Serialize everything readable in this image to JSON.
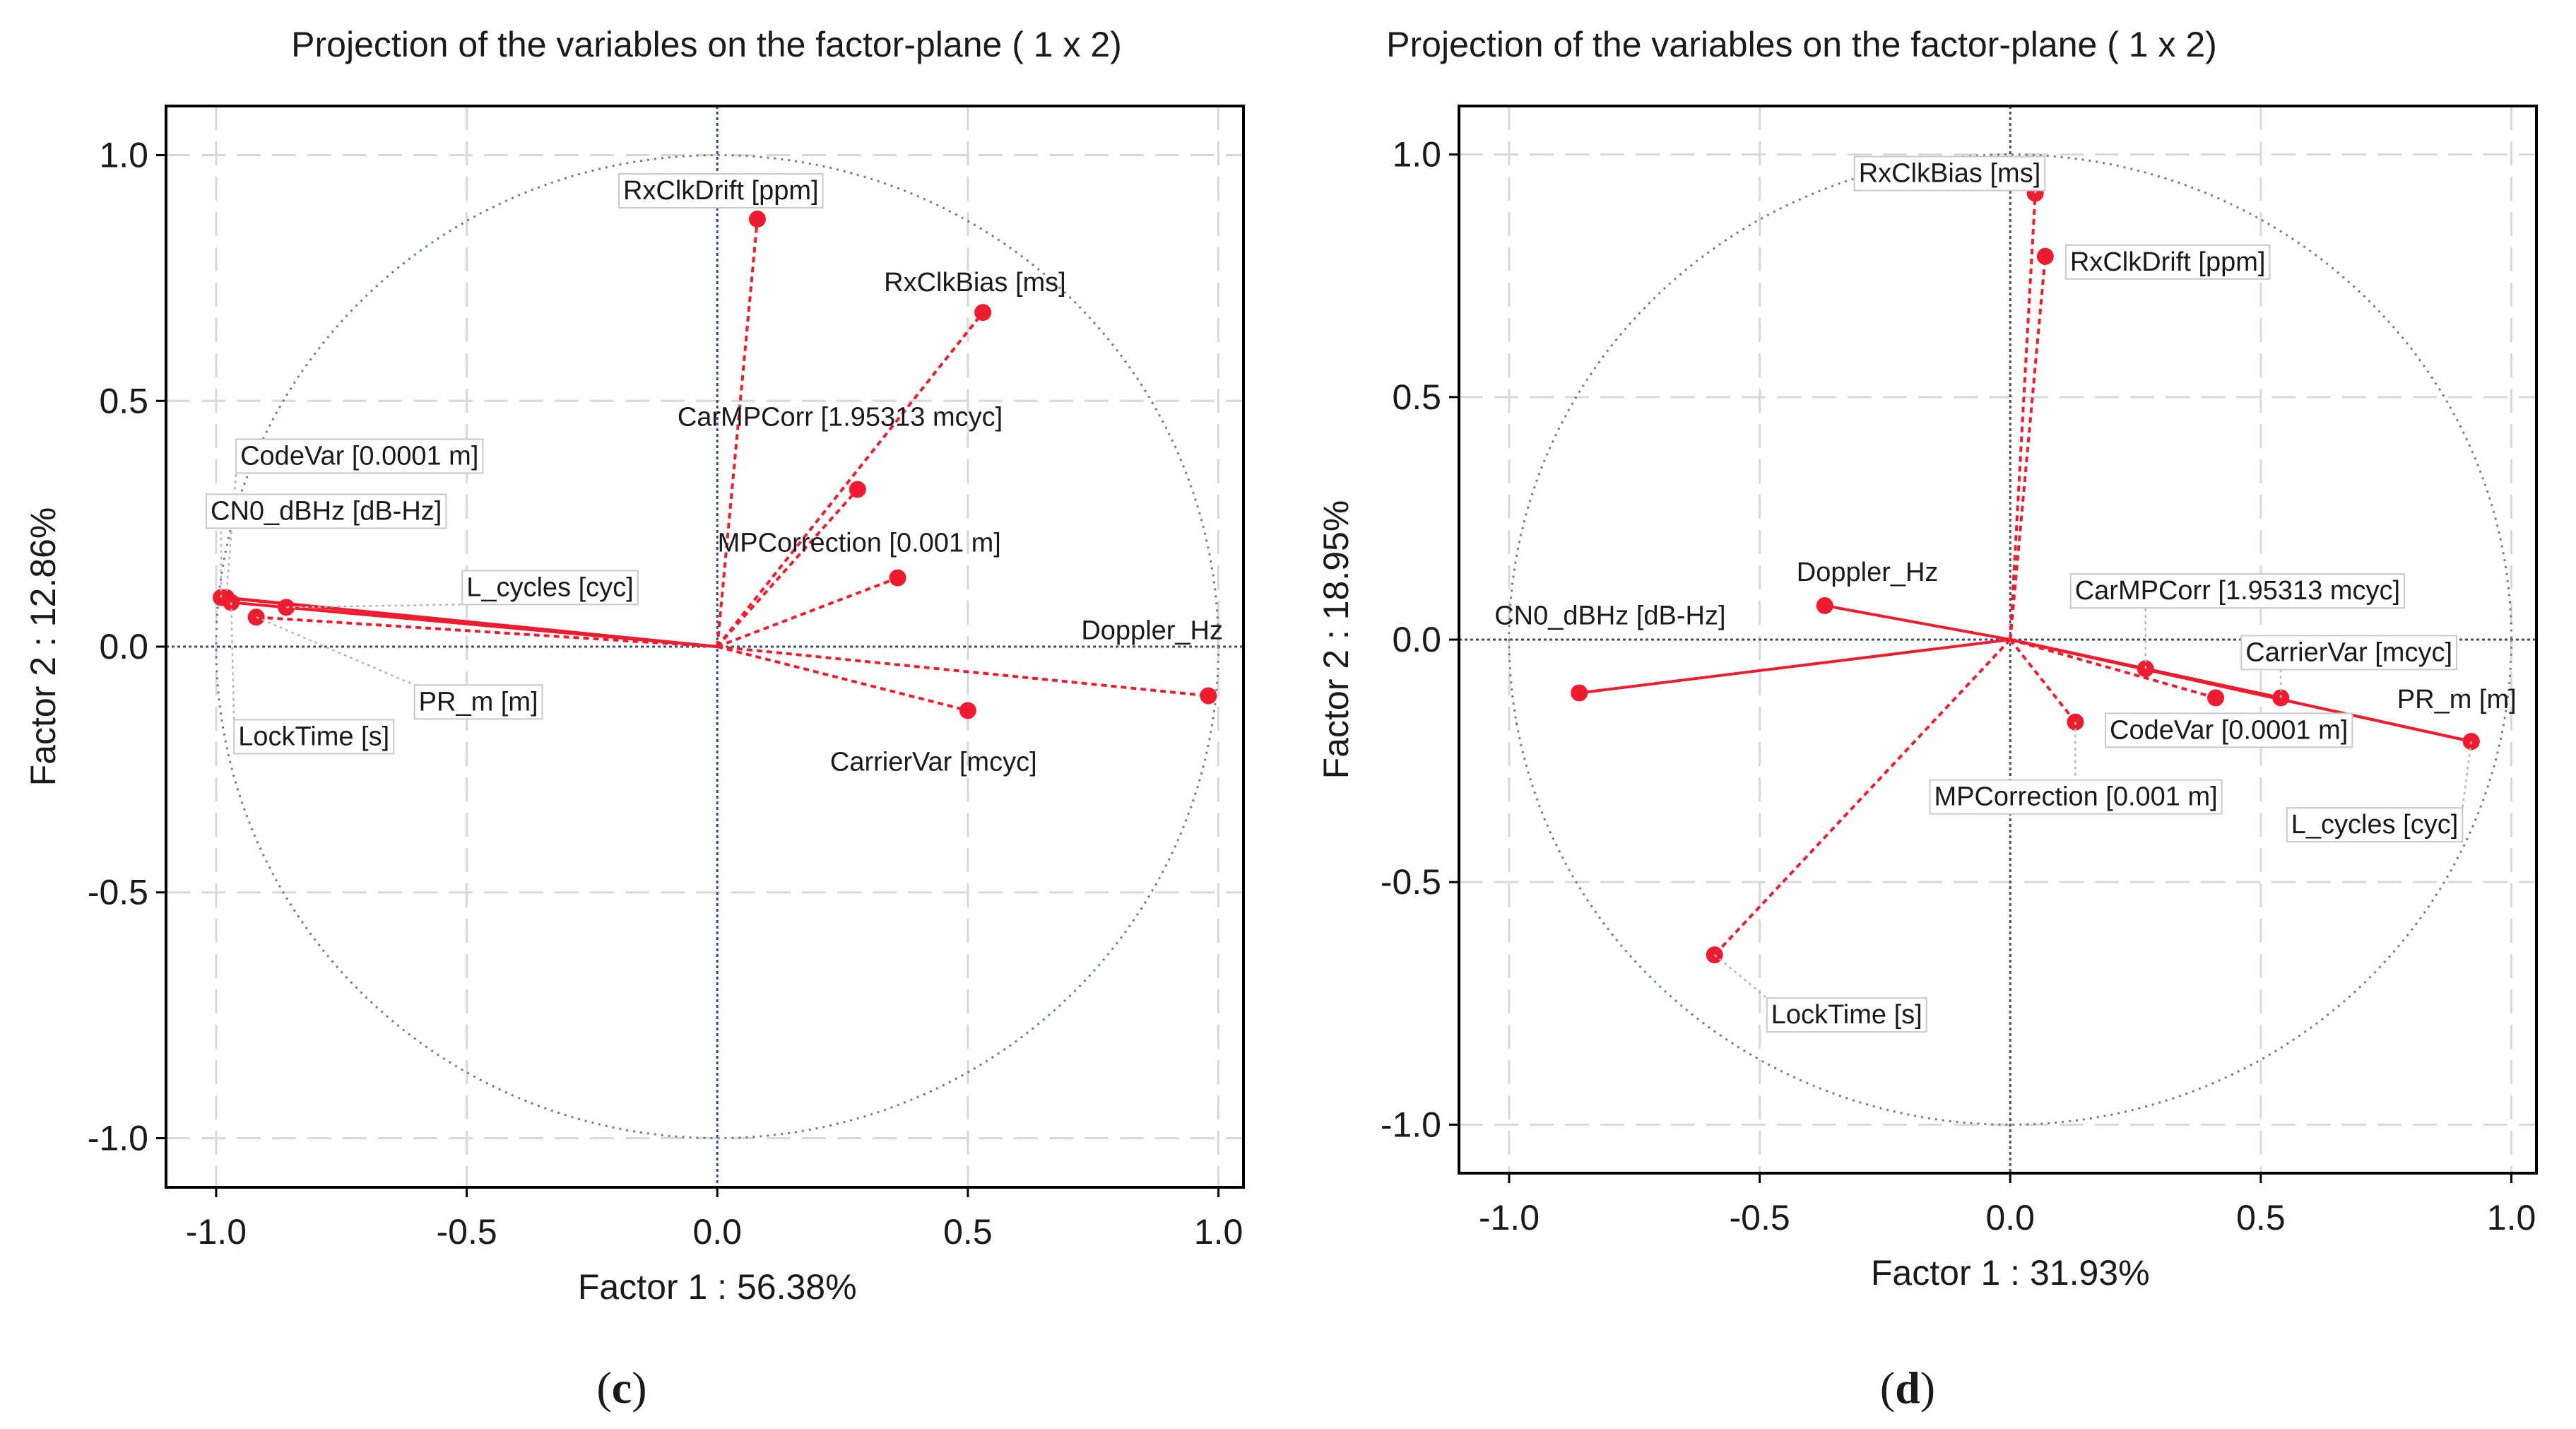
{
  "chart_data": [
    {
      "type": "scatter",
      "subtype": "pca-variable-projection",
      "panel_label": "(c)",
      "title": "Projection of the variables on the factor-plane (  1 x   2)",
      "xlabel": "Factor 1 : 56.38%",
      "ylabel": "Factor 2 : 12.86%",
      "xlim": [
        -1.1,
        1.05
      ],
      "ylim": [
        -1.1,
        1.1
      ],
      "xticks": [
        -1.0,
        -0.5,
        0.0,
        0.5,
        1.0
      ],
      "yticks": [
        -1.0,
        -0.5,
        0.0,
        0.5,
        1.0
      ],
      "xtick_labels": [
        "-1.0",
        "-0.5",
        "0.0",
        "0.5",
        "1.0"
      ],
      "ytick_labels": [
        "-1.0",
        "-0.5",
        "0.0",
        "0.5",
        "1.0"
      ],
      "unit_circle": true,
      "variables": [
        {
          "name": "RxClkDrift [ppm]",
          "x": 0.08,
          "y": 0.87,
          "style": "dashed"
        },
        {
          "name": "RxClkBias [ms]",
          "x": 0.53,
          "y": 0.68,
          "style": "dashed"
        },
        {
          "name": "CarMPCorr [1.95313 mcyc]",
          "x": 0.28,
          "y": 0.32,
          "style": "dashed"
        },
        {
          "name": "MPCorrection [0.001 m]",
          "x": 0.36,
          "y": 0.14,
          "style": "dashed"
        },
        {
          "name": "Doppler_Hz",
          "x": 0.98,
          "y": -0.1,
          "style": "dashed"
        },
        {
          "name": "CarrierVar [mcyc]",
          "x": 0.5,
          "y": -0.13,
          "style": "dashed"
        },
        {
          "name": "CodeVar [0.0001 m]",
          "x": -0.98,
          "y": 0.1,
          "style": "solid"
        },
        {
          "name": "CN0_dBHz [dB-Hz]",
          "x": -0.99,
          "y": 0.1,
          "style": "solid"
        },
        {
          "name": "L_cycles [cyc]",
          "x": -0.86,
          "y": 0.08,
          "style": "solid"
        },
        {
          "name": "PR_m [m]",
          "x": -0.92,
          "y": 0.06,
          "style": "dashed"
        },
        {
          "name": "LockTime [s]",
          "x": -0.97,
          "y": 0.09,
          "style": "solid"
        }
      ]
    },
    {
      "type": "scatter",
      "subtype": "pca-variable-projection",
      "panel_label": "(d)",
      "title": "Projection of the variables on the factor-plane (  1 x   2)",
      "xlabel": "Factor 1 : 31.93%",
      "ylabel": "Factor 2 : 18.95%",
      "xlim": [
        -1.1,
        1.05
      ],
      "ylim": [
        -1.1,
        1.1
      ],
      "xticks": [
        -1.0,
        -0.5,
        0.0,
        0.5,
        1.0
      ],
      "yticks": [
        -1.0,
        -0.5,
        0.0,
        0.5,
        1.0
      ],
      "xtick_labels": [
        "-1.0",
        "-0.5",
        "0.0",
        "0.5",
        "1.0"
      ],
      "ytick_labels": [
        "-1.0",
        "-0.5",
        "0.0",
        "0.5",
        "1.0"
      ],
      "unit_circle": true,
      "variables": [
        {
          "name": "RxClkBias [ms]",
          "x": 0.05,
          "y": 0.92,
          "style": "dashed"
        },
        {
          "name": "RxClkDrift [ppm]",
          "x": 0.07,
          "y": 0.79,
          "style": "dashed"
        },
        {
          "name": "Doppler_Hz",
          "x": -0.37,
          "y": 0.07,
          "style": "solid"
        },
        {
          "name": "CN0_dBHz [dB-Hz]",
          "x": -0.86,
          "y": -0.11,
          "style": "solid"
        },
        {
          "name": "CarMPCorr [1.95313 mcyc]",
          "x": 0.27,
          "y": -0.06,
          "style": "solid"
        },
        {
          "name": "CarrierVar [mcyc]",
          "x": 0.54,
          "y": -0.12,
          "style": "solid"
        },
        {
          "name": "PR_m [m]",
          "x": 0.92,
          "y": -0.21,
          "style": "solid"
        },
        {
          "name": "CodeVar [0.0001 m]",
          "x": 0.41,
          "y": -0.12,
          "style": "dashed"
        },
        {
          "name": "MPCorrection [0.001 m]",
          "x": 0.13,
          "y": -0.17,
          "style": "dashed"
        },
        {
          "name": "L_cycles [cyc]",
          "x": 0.92,
          "y": -0.21,
          "style": "solid"
        },
        {
          "name": "LockTime [s]",
          "x": -0.59,
          "y": -0.65,
          "style": "dashed"
        }
      ]
    }
  ]
}
